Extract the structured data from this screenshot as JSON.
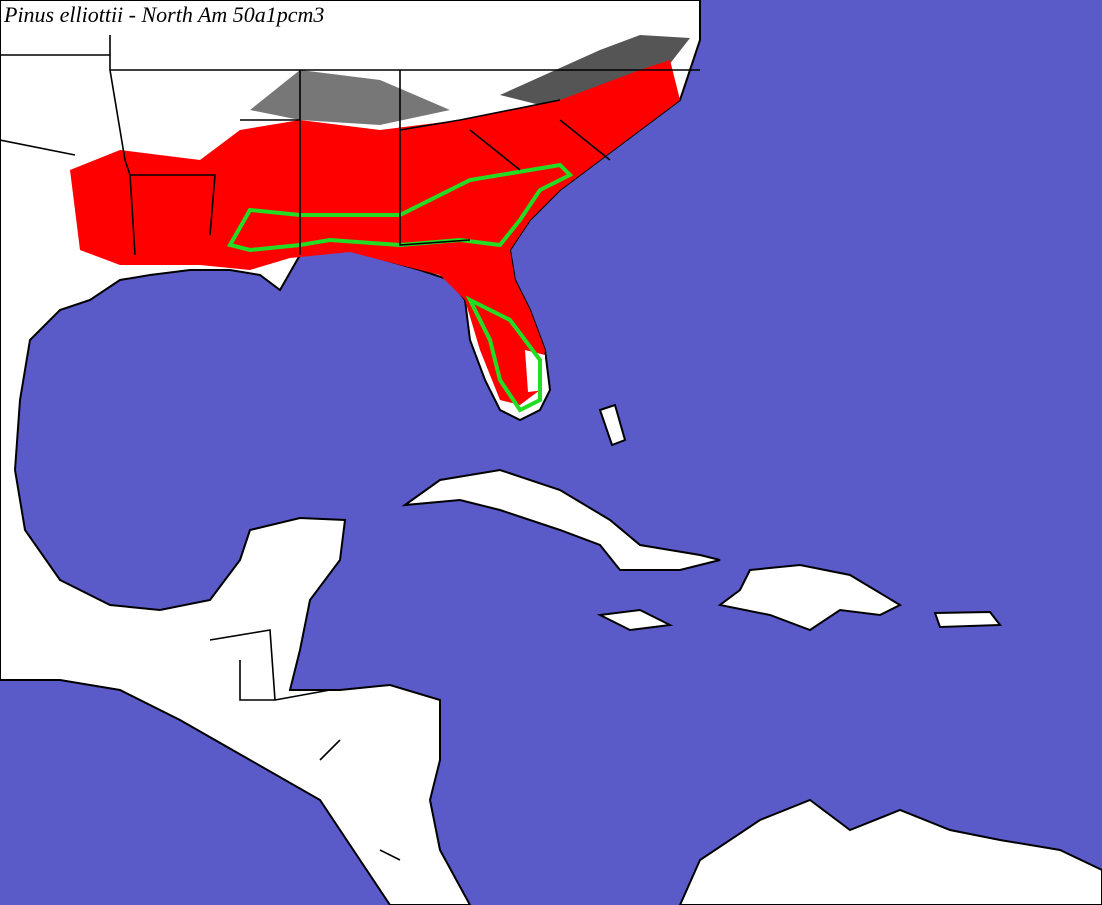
{
  "title": "Pinus elliottii - North Am 50a1pcm3"
}
